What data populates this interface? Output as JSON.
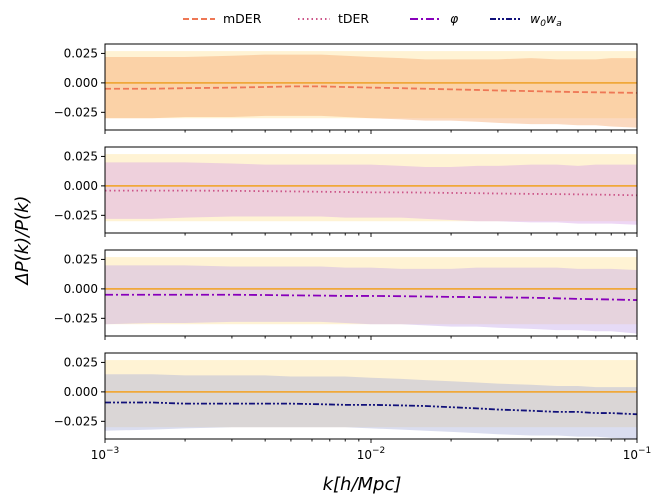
{
  "chart_data": {
    "type": "line",
    "xlabel": "k[h/Mpc]",
    "ylabel": "ΔP(k)/P(k)",
    "xscale": "log",
    "xlim": [
      0.001,
      0.1
    ],
    "ylim": [
      -0.04,
      0.033
    ],
    "x_ticks": [
      {
        "value": 0.001,
        "base": "10",
        "exp": "−3"
      },
      {
        "value": 0.01,
        "base": "10",
        "exp": "−2"
      },
      {
        "value": 0.1,
        "base": "10",
        "exp": "−1"
      }
    ],
    "y_ticks": [
      {
        "value": 0.025,
        "label": "0.025"
      },
      {
        "value": 0.0,
        "label": "0.000"
      },
      {
        "value": -0.025,
        "label": "−0.025"
      }
    ],
    "grid": false,
    "legend": {
      "placement": "top-center",
      "entries": [
        {
          "label": "mDER",
          "color": "#ee7755",
          "dash": "dashed"
        },
        {
          "label": "tDER",
          "color": "#cc5588",
          "dash": "dotted"
        },
        {
          "label_main": "φ",
          "label_sub": "",
          "color": "#8800bb",
          "dash": "dashdot"
        },
        {
          "label_main": "w",
          "sub1": "0",
          "mid": "w",
          "sub2": "a",
          "color": "#11117a",
          "dash": "dashdotdot"
        }
      ]
    },
    "x": [
      0.001,
      0.0015,
      0.002,
      0.003,
      0.004,
      0.005,
      0.0065,
      0.008,
      0.01,
      0.013,
      0.016,
      0.02,
      0.025,
      0.03,
      0.04,
      0.05,
      0.06,
      0.07,
      0.08,
      0.1
    ],
    "panels": [
      {
        "series": [
          {
            "name": "mDER",
            "color": "#ee7755",
            "dash": "dashed",
            "band_color": "#f5a56a",
            "values": [
              -0.005,
              -0.005,
              -0.0045,
              -0.004,
              -0.0035,
              -0.003,
              -0.003,
              -0.0035,
              -0.004,
              -0.0045,
              -0.005,
              -0.0055,
              -0.006,
              -0.0065,
              -0.007,
              -0.0075,
              -0.0078,
              -0.008,
              -0.0082,
              -0.0085
            ],
            "band_low": [
              -0.03,
              -0.03,
              -0.029,
              -0.029,
              -0.028,
              -0.028,
              -0.028,
              -0.029,
              -0.03,
              -0.031,
              -0.032,
              -0.032,
              -0.033,
              -0.034,
              -0.035,
              -0.035,
              -0.036,
              -0.036,
              -0.037,
              -0.038
            ],
            "band_high": [
              0.022,
              0.022,
              0.022,
              0.023,
              0.024,
              0.024,
              0.024,
              0.023,
              0.022,
              0.021,
              0.02,
              0.02,
              0.02,
              0.02,
              0.021,
              0.02,
              0.02,
              0.02,
              0.021,
              0.021
            ]
          }
        ]
      },
      {
        "series": [
          {
            "name": "tDER",
            "color": "#cc5588",
            "dash": "dotted",
            "band_color": "#d6a0e6",
            "values": [
              -0.004,
              -0.004,
              -0.004,
              -0.0042,
              -0.0045,
              -0.0047,
              -0.005,
              -0.0052,
              -0.0055,
              -0.0055,
              -0.0057,
              -0.006,
              -0.0062,
              -0.0065,
              -0.0068,
              -0.007,
              -0.0072,
              -0.0074,
              -0.0076,
              -0.008
            ],
            "band_low": [
              -0.028,
              -0.028,
              -0.027,
              -0.026,
              -0.026,
              -0.026,
              -0.026,
              -0.027,
              -0.027,
              -0.027,
              -0.028,
              -0.029,
              -0.03,
              -0.03,
              -0.031,
              -0.031,
              -0.032,
              -0.032,
              -0.032,
              -0.033
            ],
            "band_high": [
              0.02,
              0.02,
              0.02,
              0.019,
              0.018,
              0.018,
              0.018,
              0.018,
              0.018,
              0.017,
              0.016,
              0.016,
              0.017,
              0.017,
              0.018,
              0.018,
              0.017,
              0.018,
              0.018,
              0.018
            ]
          }
        ]
      },
      {
        "series": [
          {
            "name": "φ",
            "color": "#8800bb",
            "dash": "dashdot",
            "band_color": "#c4a6ea",
            "values": [
              -0.005,
              -0.005,
              -0.005,
              -0.005,
              -0.0052,
              -0.0055,
              -0.0057,
              -0.006,
              -0.006,
              -0.0062,
              -0.0065,
              -0.0068,
              -0.007,
              -0.0072,
              -0.0075,
              -0.008,
              -0.0085,
              -0.0088,
              -0.009,
              -0.0095
            ],
            "band_low": [
              -0.03,
              -0.029,
              -0.029,
              -0.028,
              -0.028,
              -0.028,
              -0.028,
              -0.029,
              -0.03,
              -0.03,
              -0.031,
              -0.032,
              -0.032,
              -0.033,
              -0.034,
              -0.035,
              -0.035,
              -0.036,
              -0.036,
              -0.038
            ],
            "band_high": [
              0.02,
              0.02,
              0.02,
              0.019,
              0.019,
              0.019,
              0.019,
              0.018,
              0.018,
              0.017,
              0.017,
              0.017,
              0.018,
              0.018,
              0.018,
              0.018,
              0.017,
              0.017,
              0.017,
              0.016
            ]
          }
        ]
      },
      {
        "series": [
          {
            "name": "w0wa",
            "color": "#11117a",
            "dash": "dashdotdot",
            "band_color": "#a8aed8",
            "values": [
              -0.009,
              -0.009,
              -0.01,
              -0.01,
              -0.01,
              -0.01,
              -0.0105,
              -0.011,
              -0.011,
              -0.0115,
              -0.012,
              -0.013,
              -0.014,
              -0.015,
              -0.016,
              -0.017,
              -0.017,
              -0.018,
              -0.018,
              -0.019
            ],
            "band_low": [
              -0.033,
              -0.032,
              -0.031,
              -0.03,
              -0.03,
              -0.03,
              -0.03,
              -0.03,
              -0.031,
              -0.032,
              -0.033,
              -0.034,
              -0.035,
              -0.036,
              -0.037,
              -0.037,
              -0.038,
              -0.038,
              -0.039,
              -0.04
            ],
            "band_high": [
              0.015,
              0.015,
              0.014,
              0.014,
              0.014,
              0.013,
              0.013,
              0.013,
              0.012,
              0.011,
              0.01,
              0.009,
              0.008,
              0.007,
              0.006,
              0.005,
              0.005,
              0.004,
              0.004,
              0.004
            ]
          }
        ]
      }
    ],
    "reference": {
      "value": 0.0,
      "color": "#f0a83a",
      "band_color": "#ffe9b0",
      "band_low": -0.03,
      "band_high": 0.027
    }
  }
}
